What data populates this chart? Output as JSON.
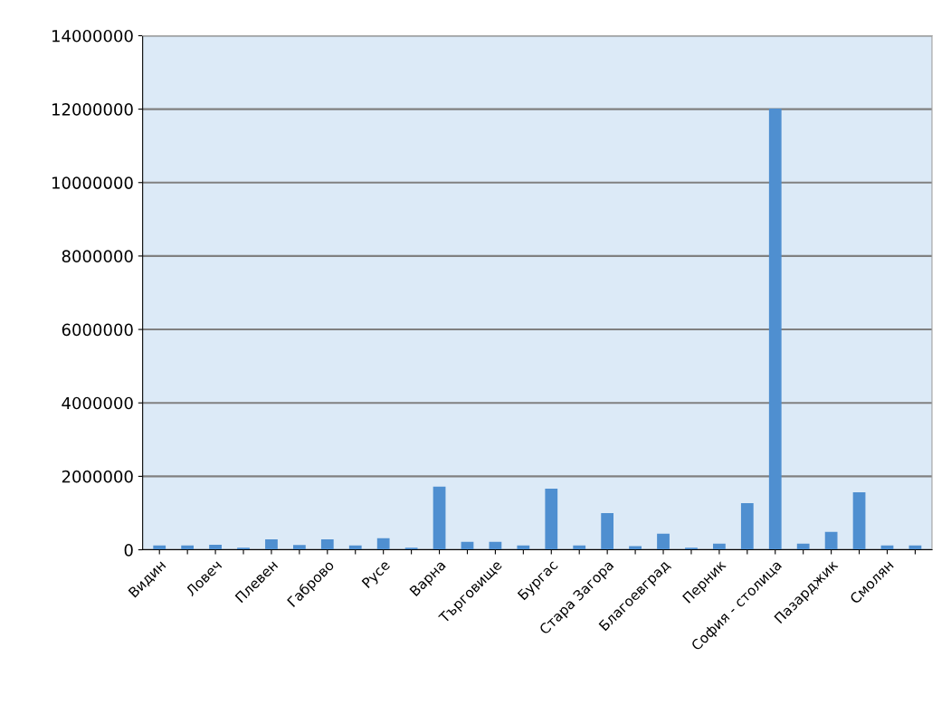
{
  "chart_data": {
    "type": "bar",
    "categories": [
      "Видин",
      null,
      "Ловеч",
      null,
      "Плевен",
      null,
      "Габрово",
      null,
      "Русе",
      null,
      "Варна",
      null,
      "Търговище",
      null,
      "Бургас",
      null,
      "Стара Загора",
      null,
      "Благоевград",
      null,
      "Перник",
      null,
      "София - столица",
      null,
      "Пазарджик",
      null,
      "Смолян",
      null
    ],
    "values": [
      100000,
      100000,
      120000,
      40000,
      270000,
      110000,
      270000,
      100000,
      300000,
      40000,
      1700000,
      200000,
      200000,
      100000,
      1650000,
      100000,
      980000,
      80000,
      420000,
      40000,
      150000,
      1250000,
      12000000,
      150000,
      470000,
      1550000,
      100000,
      100000
    ],
    "color": "#4f8fd0",
    "ylim": [
      0,
      14000000
    ],
    "yticks": [
      0,
      2000000,
      4000000,
      6000000,
      8000000,
      10000000,
      12000000,
      14000000
    ],
    "grid": "y"
  }
}
